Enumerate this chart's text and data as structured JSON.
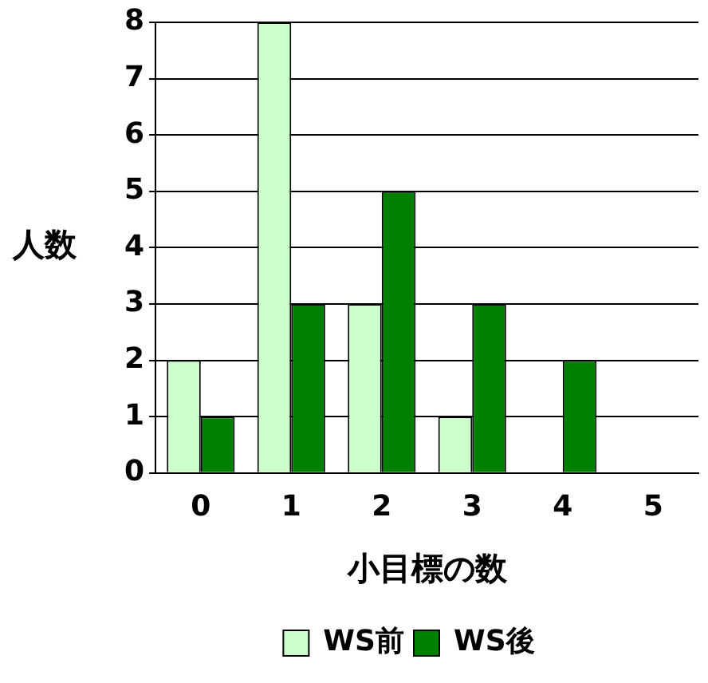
{
  "chart_data": {
    "type": "bar",
    "xlabel": "小目標の数",
    "ylabel": "人数",
    "categories": [
      "0",
      "1",
      "2",
      "3",
      "4",
      "5"
    ],
    "series": [
      {
        "name": "WS前",
        "color": "#ccffcc",
        "values": [
          2,
          8,
          3,
          1,
          0,
          0
        ]
      },
      {
        "name": "WS後",
        "color": "#008000",
        "values": [
          1,
          3,
          5,
          3,
          2,
          0
        ]
      }
    ],
    "ylim": [
      0,
      8
    ],
    "yticks": [
      0,
      1,
      2,
      3,
      4,
      5,
      6,
      7,
      8
    ],
    "grid": "y",
    "legend": "bottom"
  }
}
